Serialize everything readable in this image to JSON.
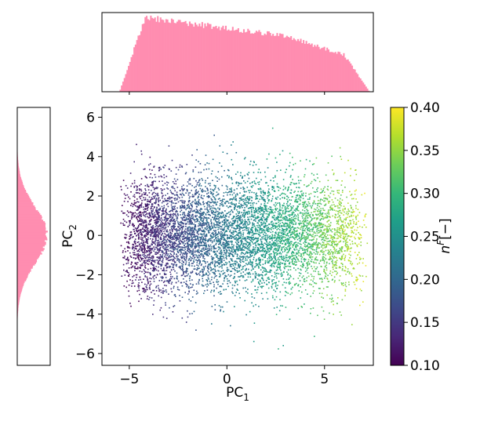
{
  "chart_data": [
    {
      "type": "scatter",
      "xlabel": "PC",
      "xlabel_sub": "1",
      "ylabel": "PC",
      "ylabel_sub": "2",
      "xlim": [
        -6.4,
        7.5
      ],
      "ylim": [
        -6.6,
        6.5
      ],
      "xticks": [
        -5,
        0,
        5
      ],
      "yticks": [
        -6,
        -4,
        -2,
        0,
        2,
        4,
        6
      ],
      "color_variable": "n^F",
      "point_cloud": {
        "x_range": [
          -5.5,
          7.3
        ],
        "y_center": 0,
        "y_spread_typical": [
          -4,
          4
        ],
        "y_extreme": [
          -6,
          6.3
        ],
        "count_approx": 60000
      },
      "colormap": "viridis",
      "grid": false
    },
    {
      "type": "colorbar",
      "label": "n",
      "label_sup": "F",
      "label_suffix": "[−]",
      "range": [
        0.1,
        0.4
      ],
      "ticks": [
        "0.10",
        "0.15",
        "0.20",
        "0.25",
        "0.30",
        "0.35",
        "0.40"
      ],
      "colormap": "viridis"
    },
    {
      "type": "histogram",
      "variable": "PC1",
      "orientation": "vertical",
      "color": "#ff8db0",
      "support": [
        -5.5,
        7.3
      ],
      "shape": "rises sharply near -5, peaks near -4, gradual decline to about 0.75 of peak by 3, then drops to zero near 7"
    },
    {
      "type": "histogram",
      "variable": "PC2",
      "orientation": "horizontal",
      "color": "#ff8db0",
      "support": [
        -6,
        6
      ],
      "shape": "gaussian centered at 0"
    }
  ],
  "colors": {
    "histogram": "#ff8db0",
    "axis": "#000000"
  }
}
